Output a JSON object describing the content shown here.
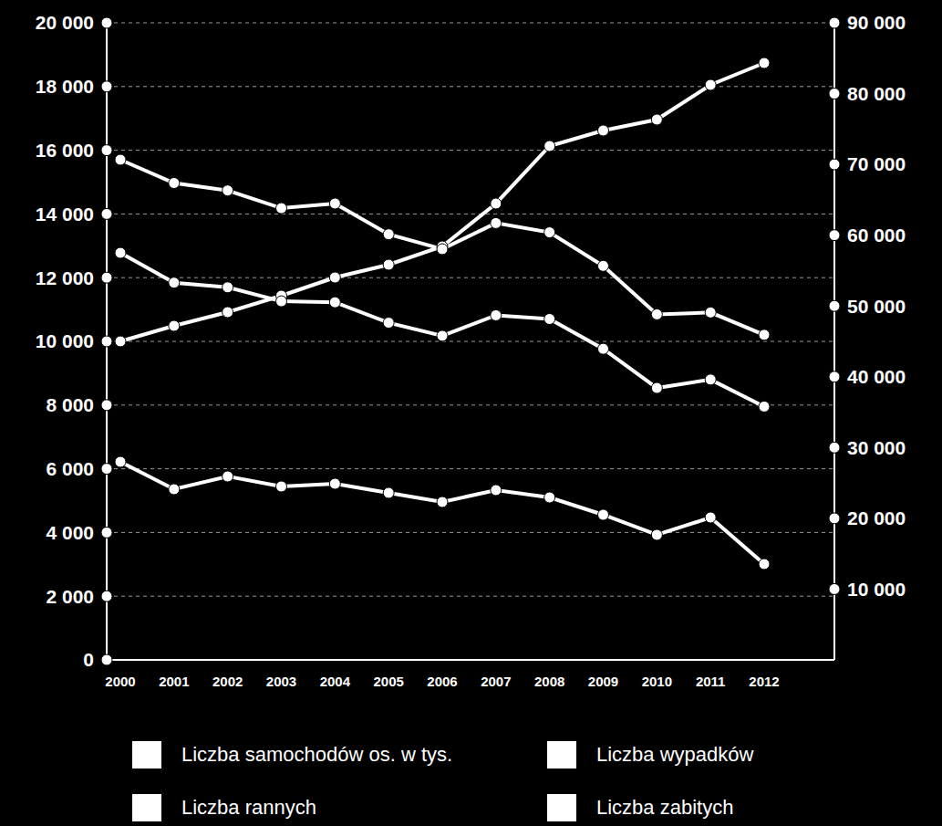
{
  "chart_data": {
    "type": "line",
    "categories": [
      "2000",
      "2001",
      "2002",
      "2003",
      "2004",
      "2005",
      "2006",
      "2007",
      "2008",
      "2009",
      "2010",
      "2011",
      "2012"
    ],
    "series": [
      {
        "name": "Liczba samochodów os. w tys.",
        "color": "#ffffff",
        "marker": "o",
        "values": [
          10000,
          10487,
          10917,
          11433,
          12006,
          12407,
          12980,
          14327,
          16132,
          16619,
          16963,
          18052,
          18739
        ]
      },
      {
        "name": "Liczba wypadków",
        "color": "#ffffff",
        "marker": "o",
        "axis": "y2",
        "values": [
          57500,
          53289,
          52632,
          50658,
          50526,
          47632,
          45789,
          48684,
          48158,
          43947,
          38421,
          39605,
          35789
        ]
      },
      {
        "name": "Liczba rannych",
        "color": "#ffffff",
        "marker": "o",
        "axis": "y2",
        "values": [
          70658,
          67368,
          66316,
          63816,
          64474,
          60132,
          58026,
          61711,
          60395,
          55658,
          48816,
          49079,
          45921
        ]
      },
      {
        "name": "Liczba zabitych",
        "color": "#ffffff",
        "marker": "o",
        "values": [
          6218,
          5358,
          5759,
          5444,
          5530,
          5244,
          4957,
          5330,
          5100,
          4556,
          3926,
          4470,
          3009
        ]
      }
    ],
    "ylim": [
      0,
      20000
    ],
    "yticks": [
      0,
      {
        "value": 2000,
        "label": "2 000"
      },
      {
        "value": 4000,
        "label": "4 000"
      },
      {
        "value": 6000,
        "label": "6 000"
      },
      {
        "value": 8000,
        "label": "8 000"
      },
      {
        "value": 10000,
        "label": "10 000"
      },
      {
        "value": 12000,
        "label": "12 000"
      },
      {
        "value": 14000,
        "label": "14 000"
      },
      {
        "value": 16000,
        "label": "16 000"
      },
      {
        "value": 18000,
        "label": "18 000"
      },
      {
        "value": 20000,
        "label": "20 000"
      }
    ],
    "y2lim": [
      0,
      90000
    ],
    "y2ticks": [
      {
        "value": 10000,
        "label": "10 000"
      },
      {
        "value": 20000,
        "label": "20 000"
      },
      {
        "value": 30000,
        "label": "30 000"
      },
      {
        "value": 40000,
        "label": "40 000"
      },
      {
        "value": 50000,
        "label": "50 000"
      },
      {
        "value": 60000,
        "label": "60 000"
      },
      {
        "value": 70000,
        "label": "70 000"
      },
      {
        "value": 80000,
        "label": "80 000"
      },
      {
        "value": 90000,
        "label": "90 000"
      }
    ],
    "grid": true,
    "legend": "bottom"
  }
}
